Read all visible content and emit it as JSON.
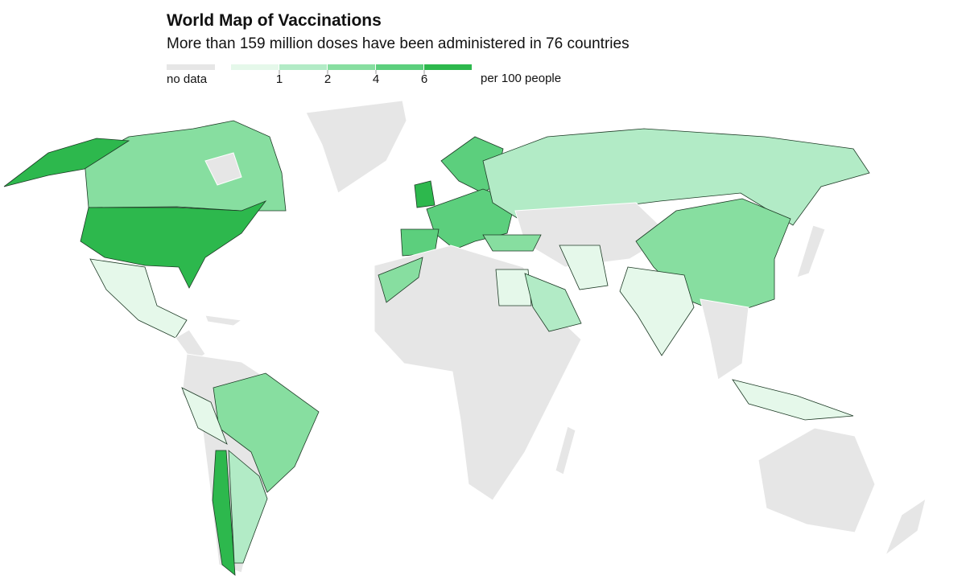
{
  "title": "World Map of Vaccinations",
  "subtitle": "More than 159 million doses have been administered in 76 countries",
  "legend": {
    "no_data": {
      "label": "no data",
      "color": "#e6e6e6"
    },
    "colors": [
      "#e5f8ea",
      "#b2ebc6",
      "#87dea0",
      "#5ccf7d",
      "#2db84d"
    ],
    "ticks": [
      1,
      2,
      4,
      6
    ],
    "unit": "per 100 people"
  }
}
